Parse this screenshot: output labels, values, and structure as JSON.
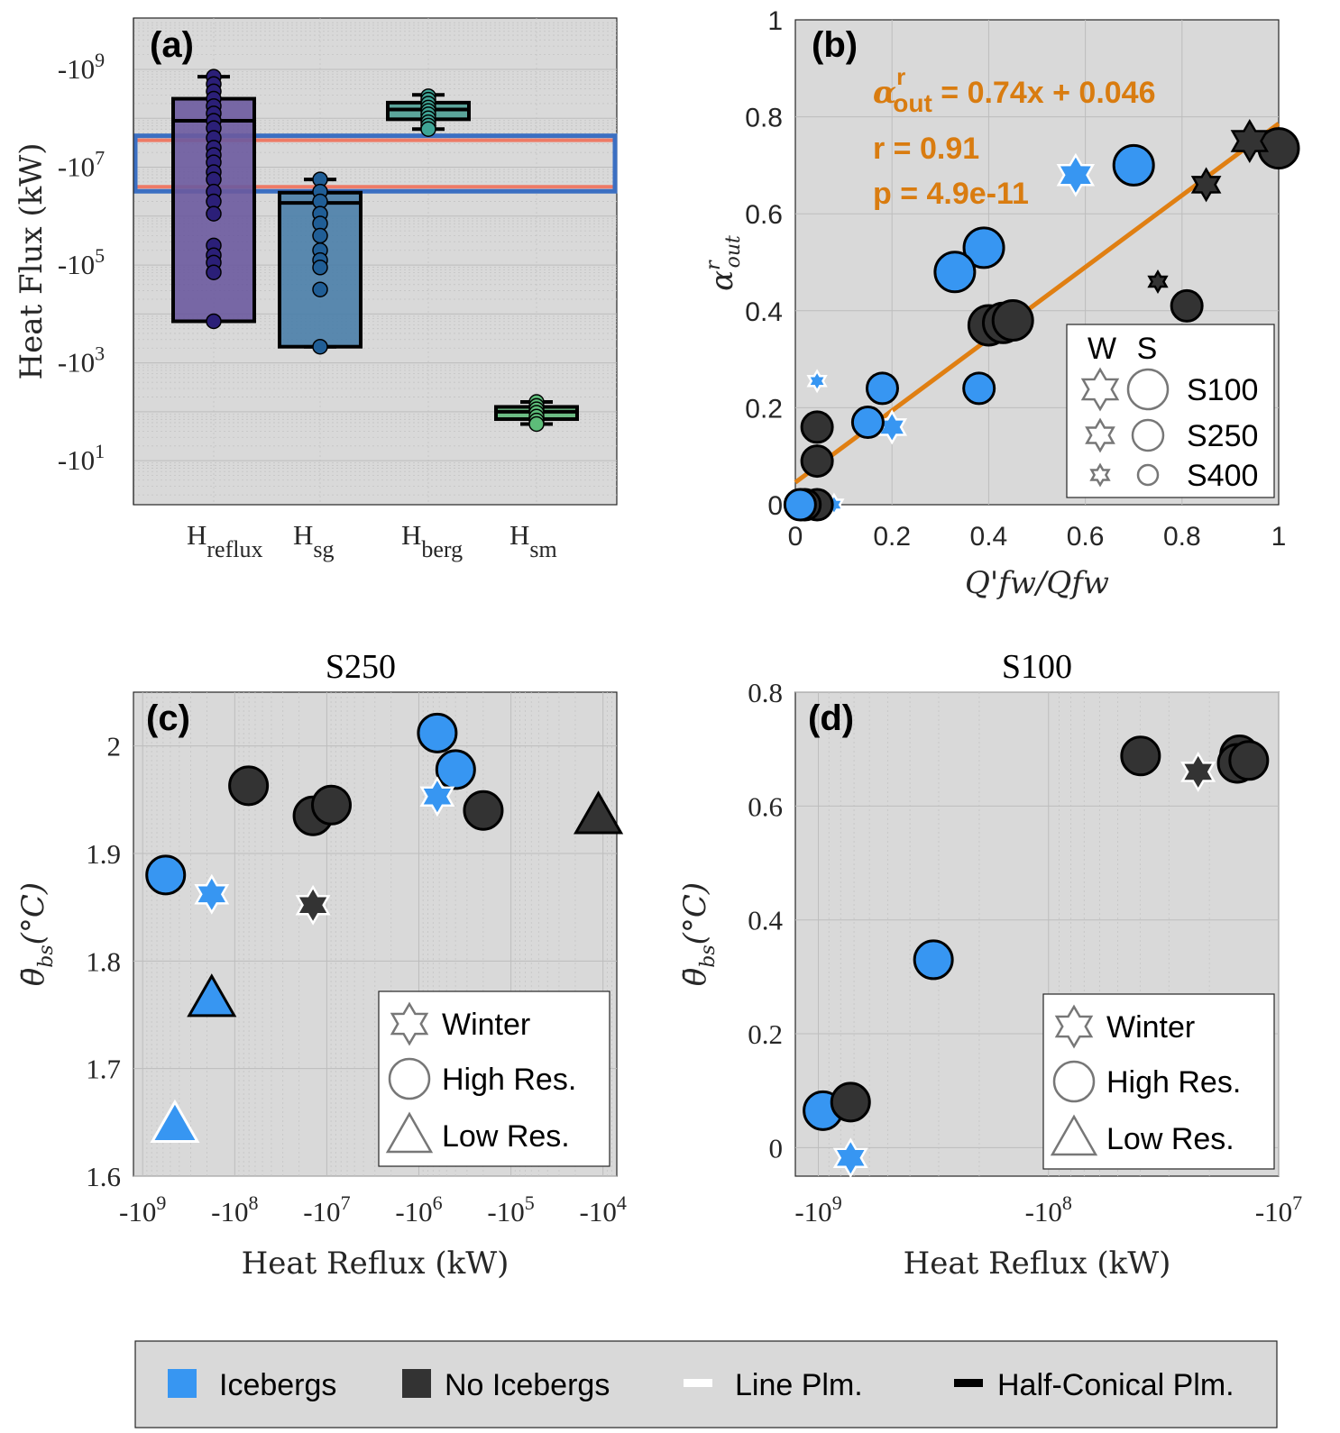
{
  "colors": {
    "iceberg": "#3796f2",
    "no_iceberg": "#333333",
    "fit_line": "#e07f12",
    "reflux": "#6b5a9e",
    "sg": "#4a7ea8",
    "berg": "#4d9f94",
    "sm": "#5fb87a",
    "band_blue": "#3b6fc2",
    "band_red": "#ee7a66"
  },
  "bottom_legend": {
    "icebergs": "Icebergs",
    "no_icebergs": "No Icebergs",
    "line_plm": "Line Plm.",
    "half_conical_plm": "Half-Conical Plm."
  },
  "chart_data": [
    {
      "panel": "(a)",
      "type": "box",
      "ylabel": "Heat Flux (kW)",
      "yscale": "log (negative values)",
      "ytick_labels": [
        "-10^9",
        "-10^7",
        "-10^5",
        "-10^3",
        "-10^1"
      ],
      "categories": [
        "H_reflux",
        "H_sg",
        "H_berg",
        "H_sm"
      ],
      "category_labels": [
        {
          "main": "H",
          "sub": "reflux"
        },
        {
          "main": "H",
          "sub": "sg"
        },
        {
          "main": "H",
          "sub": "berg"
        },
        {
          "main": "H",
          "sub": "sm"
        }
      ],
      "boxes": [
        {
          "name": "H_reflux",
          "whisker_max_exp": 8.85,
          "q3_exp": 8.4,
          "median_exp": 7.95,
          "q1_exp": 3.85,
          "whisker_min_exp": 3.85,
          "points_exp": [
            8.85,
            8.7,
            8.55,
            8.4,
            8.25,
            8.1,
            7.95,
            7.8,
            7.6,
            7.4,
            7.25,
            7.1,
            6.9,
            6.75,
            6.5,
            6.3,
            6.05,
            5.4,
            5.2,
            5.05,
            4.85,
            3.85
          ]
        },
        {
          "name": "H_sg",
          "whisker_max_exp": 6.75,
          "q3_exp": 6.48,
          "median_exp": 6.27,
          "q1_exp": 3.33,
          "whisker_min_exp": 3.33,
          "points_exp": [
            6.75,
            6.5,
            6.3,
            6.05,
            5.85,
            5.6,
            5.3,
            5.1,
            4.95,
            4.5,
            3.33
          ]
        },
        {
          "name": "H_berg",
          "whisker_max_exp": 8.48,
          "q3_exp": 8.32,
          "median_exp": 8.18,
          "q1_exp": 7.98,
          "whisker_min_exp": 7.78,
          "points_exp": [
            8.45,
            8.38,
            8.3,
            8.22,
            8.15,
            8.08,
            8.0,
            7.92,
            7.85,
            7.78
          ]
        },
        {
          "name": "H_sm",
          "whisker_max_exp": 2.2,
          "q3_exp": 2.1,
          "median_exp": 2.0,
          "q1_exp": 1.85,
          "whisker_min_exp": 1.75,
          "points_exp": [
            2.2,
            2.12,
            2.05,
            1.98,
            1.9,
            1.82,
            1.75
          ]
        }
      ],
      "band_exp": [
        6.6,
        7.55
      ]
    },
    {
      "panel": "(b)",
      "type": "scatter",
      "xlabel": "Q'fw/Qfw",
      "ylabel": "α^r_out",
      "xlim": [
        0,
        1
      ],
      "ylim": [
        0,
        1
      ],
      "xticks": [
        "0",
        "0.2",
        "0.4",
        "0.6",
        "0.8",
        "1"
      ],
      "yticks": [
        "0",
        "0.2",
        "0.4",
        "0.6",
        "0.8",
        "1"
      ],
      "fit": {
        "slope": 0.74,
        "intercept": 0.046
      },
      "annotations": {
        "eq_lhs": "α",
        "eq_sup": "r",
        "eq_sub": "out",
        "eq_rhs": " = 0.74x + 0.046",
        "r": "r = 0.91",
        "p": "p = 4.9e-11"
      },
      "legend": {
        "w": "W",
        "s": "S",
        "rows": [
          "S100",
          "S250",
          "S400"
        ]
      },
      "points": [
        {
          "x": 0.7,
          "y": 0.7,
          "shape": "circle",
          "size": "S100",
          "ice": true
        },
        {
          "x": 0.39,
          "y": 0.53,
          "shape": "circle",
          "size": "S100",
          "ice": true
        },
        {
          "x": 0.33,
          "y": 0.48,
          "shape": "circle",
          "size": "S100",
          "ice": true
        },
        {
          "x": 0.4,
          "y": 0.37,
          "shape": "circle",
          "size": "S100",
          "ice": false
        },
        {
          "x": 0.43,
          "y": 0.375,
          "shape": "circle",
          "size": "S100",
          "ice": false
        },
        {
          "x": 0.45,
          "y": 0.38,
          "shape": "circle",
          "size": "S100",
          "ice": false
        },
        {
          "x": 1.0,
          "y": 0.735,
          "shape": "circle",
          "size": "S100",
          "ice": false
        },
        {
          "x": 0.58,
          "y": 0.68,
          "shape": "star",
          "size": "S100",
          "ice": true
        },
        {
          "x": 0.94,
          "y": 0.75,
          "shape": "star",
          "size": "S100",
          "ice": false
        },
        {
          "x": 0.85,
          "y": 0.66,
          "shape": "star",
          "size": "S250",
          "ice": false
        },
        {
          "x": 0.2,
          "y": 0.16,
          "shape": "star",
          "size": "S250",
          "ice": true
        },
        {
          "x": 0.75,
          "y": 0.46,
          "shape": "star",
          "size": "S400",
          "ice": false
        },
        {
          "x": 0.045,
          "y": 0.255,
          "shape": "star",
          "size": "S400",
          "ice": true
        },
        {
          "x": 0.08,
          "y": 0.0,
          "shape": "star",
          "size": "S400",
          "ice": true
        },
        {
          "x": 0.18,
          "y": 0.24,
          "shape": "circle",
          "size": "S250",
          "ice": true
        },
        {
          "x": 0.38,
          "y": 0.24,
          "shape": "circle",
          "size": "S250",
          "ice": true
        },
        {
          "x": 0.15,
          "y": 0.17,
          "shape": "circle",
          "size": "S250",
          "ice": true
        },
        {
          "x": 0.81,
          "y": 0.41,
          "shape": "circle",
          "size": "S250",
          "ice": false
        },
        {
          "x": 0.045,
          "y": 0.16,
          "shape": "circle",
          "size": "S250",
          "ice": false
        },
        {
          "x": 0.045,
          "y": 0.09,
          "shape": "circle",
          "size": "S250",
          "ice": false
        },
        {
          "x": 0.045,
          "y": 0.0,
          "shape": "circle",
          "size": "S250",
          "ice": false
        },
        {
          "x": 0.02,
          "y": 0.0,
          "shape": "circle",
          "size": "S250",
          "ice": false
        },
        {
          "x": 0.01,
          "y": 0.0,
          "shape": "circle",
          "size": "S250",
          "ice": true
        }
      ]
    },
    {
      "panel": "(c)",
      "type": "scatter",
      "title": "S250",
      "xlabel": "Heat Reflux (kW)",
      "ylabel": "θbs(°C)",
      "xscale": "log (negative values)",
      "xtick_labels": [
        "-10^9",
        "-10^8",
        "-10^7",
        "-10^6",
        "-10^5",
        "-10^4"
      ],
      "ylim": [
        1.6,
        2.05
      ],
      "yticks": [
        "1.6",
        "1.7",
        "1.8",
        "1.9",
        "2"
      ],
      "legend": [
        "Winter",
        "High Res.",
        "Low Res."
      ],
      "points": [
        {
          "x_exp": 8.75,
          "y": 1.88,
          "shape": "circle",
          "ice": true
        },
        {
          "x_exp": 8.25,
          "y": 1.862,
          "shape": "star",
          "ice": true
        },
        {
          "x_exp": 8.25,
          "y": 1.765,
          "shape": "triangle",
          "ice": true
        },
        {
          "x_exp": 8.65,
          "y": 1.648,
          "shape": "triangle",
          "ice": true
        },
        {
          "x_exp": 7.85,
          "y": 1.963,
          "shape": "circle",
          "ice": false
        },
        {
          "x_exp": 7.15,
          "y": 1.935,
          "shape": "circle",
          "ice": false
        },
        {
          "x_exp": 6.95,
          "y": 1.945,
          "shape": "circle",
          "ice": false
        },
        {
          "x_exp": 7.15,
          "y": 1.852,
          "shape": "star",
          "ice": false
        },
        {
          "x_exp": 5.8,
          "y": 2.012,
          "shape": "circle",
          "ice": true
        },
        {
          "x_exp": 5.6,
          "y": 1.978,
          "shape": "circle",
          "ice": true
        },
        {
          "x_exp": 5.8,
          "y": 1.953,
          "shape": "star",
          "ice": true
        },
        {
          "x_exp": 5.3,
          "y": 1.94,
          "shape": "circle",
          "ice": false
        },
        {
          "x_exp": 4.05,
          "y": 1.935,
          "shape": "triangle",
          "ice": false
        }
      ]
    },
    {
      "panel": "(d)",
      "type": "scatter",
      "title": "S100",
      "xlabel": "Heat Reflux (kW)",
      "ylabel": "θbs(°C)",
      "xscale": "log (negative values)",
      "xtick_labels": [
        "-10^9",
        "-10^8",
        "-10^7"
      ],
      "ylim": [
        -0.05,
        0.8
      ],
      "yticks": [
        "0",
        "0.2",
        "0.4",
        "0.6",
        "0.8"
      ],
      "legend": [
        "Winter",
        "High Res.",
        "Low Res."
      ],
      "points": [
        {
          "x_exp": 8.98,
          "y": 0.065,
          "shape": "circle",
          "ice": true
        },
        {
          "x_exp": 8.86,
          "y": 0.08,
          "shape": "circle",
          "ice": false
        },
        {
          "x_exp": 8.86,
          "y": -0.018,
          "shape": "star",
          "ice": true
        },
        {
          "x_exp": 8.5,
          "y": 0.33,
          "shape": "circle",
          "ice": true
        },
        {
          "x_exp": 7.6,
          "y": 0.688,
          "shape": "circle",
          "ice": false
        },
        {
          "x_exp": 7.35,
          "y": 0.66,
          "shape": "star",
          "ice": false
        },
        {
          "x_exp": 7.17,
          "y": 0.69,
          "shape": "circle",
          "ice": false
        },
        {
          "x_exp": 7.18,
          "y": 0.675,
          "shape": "circle",
          "ice": false
        },
        {
          "x_exp": 7.13,
          "y": 0.68,
          "shape": "circle",
          "ice": false
        }
      ]
    }
  ]
}
